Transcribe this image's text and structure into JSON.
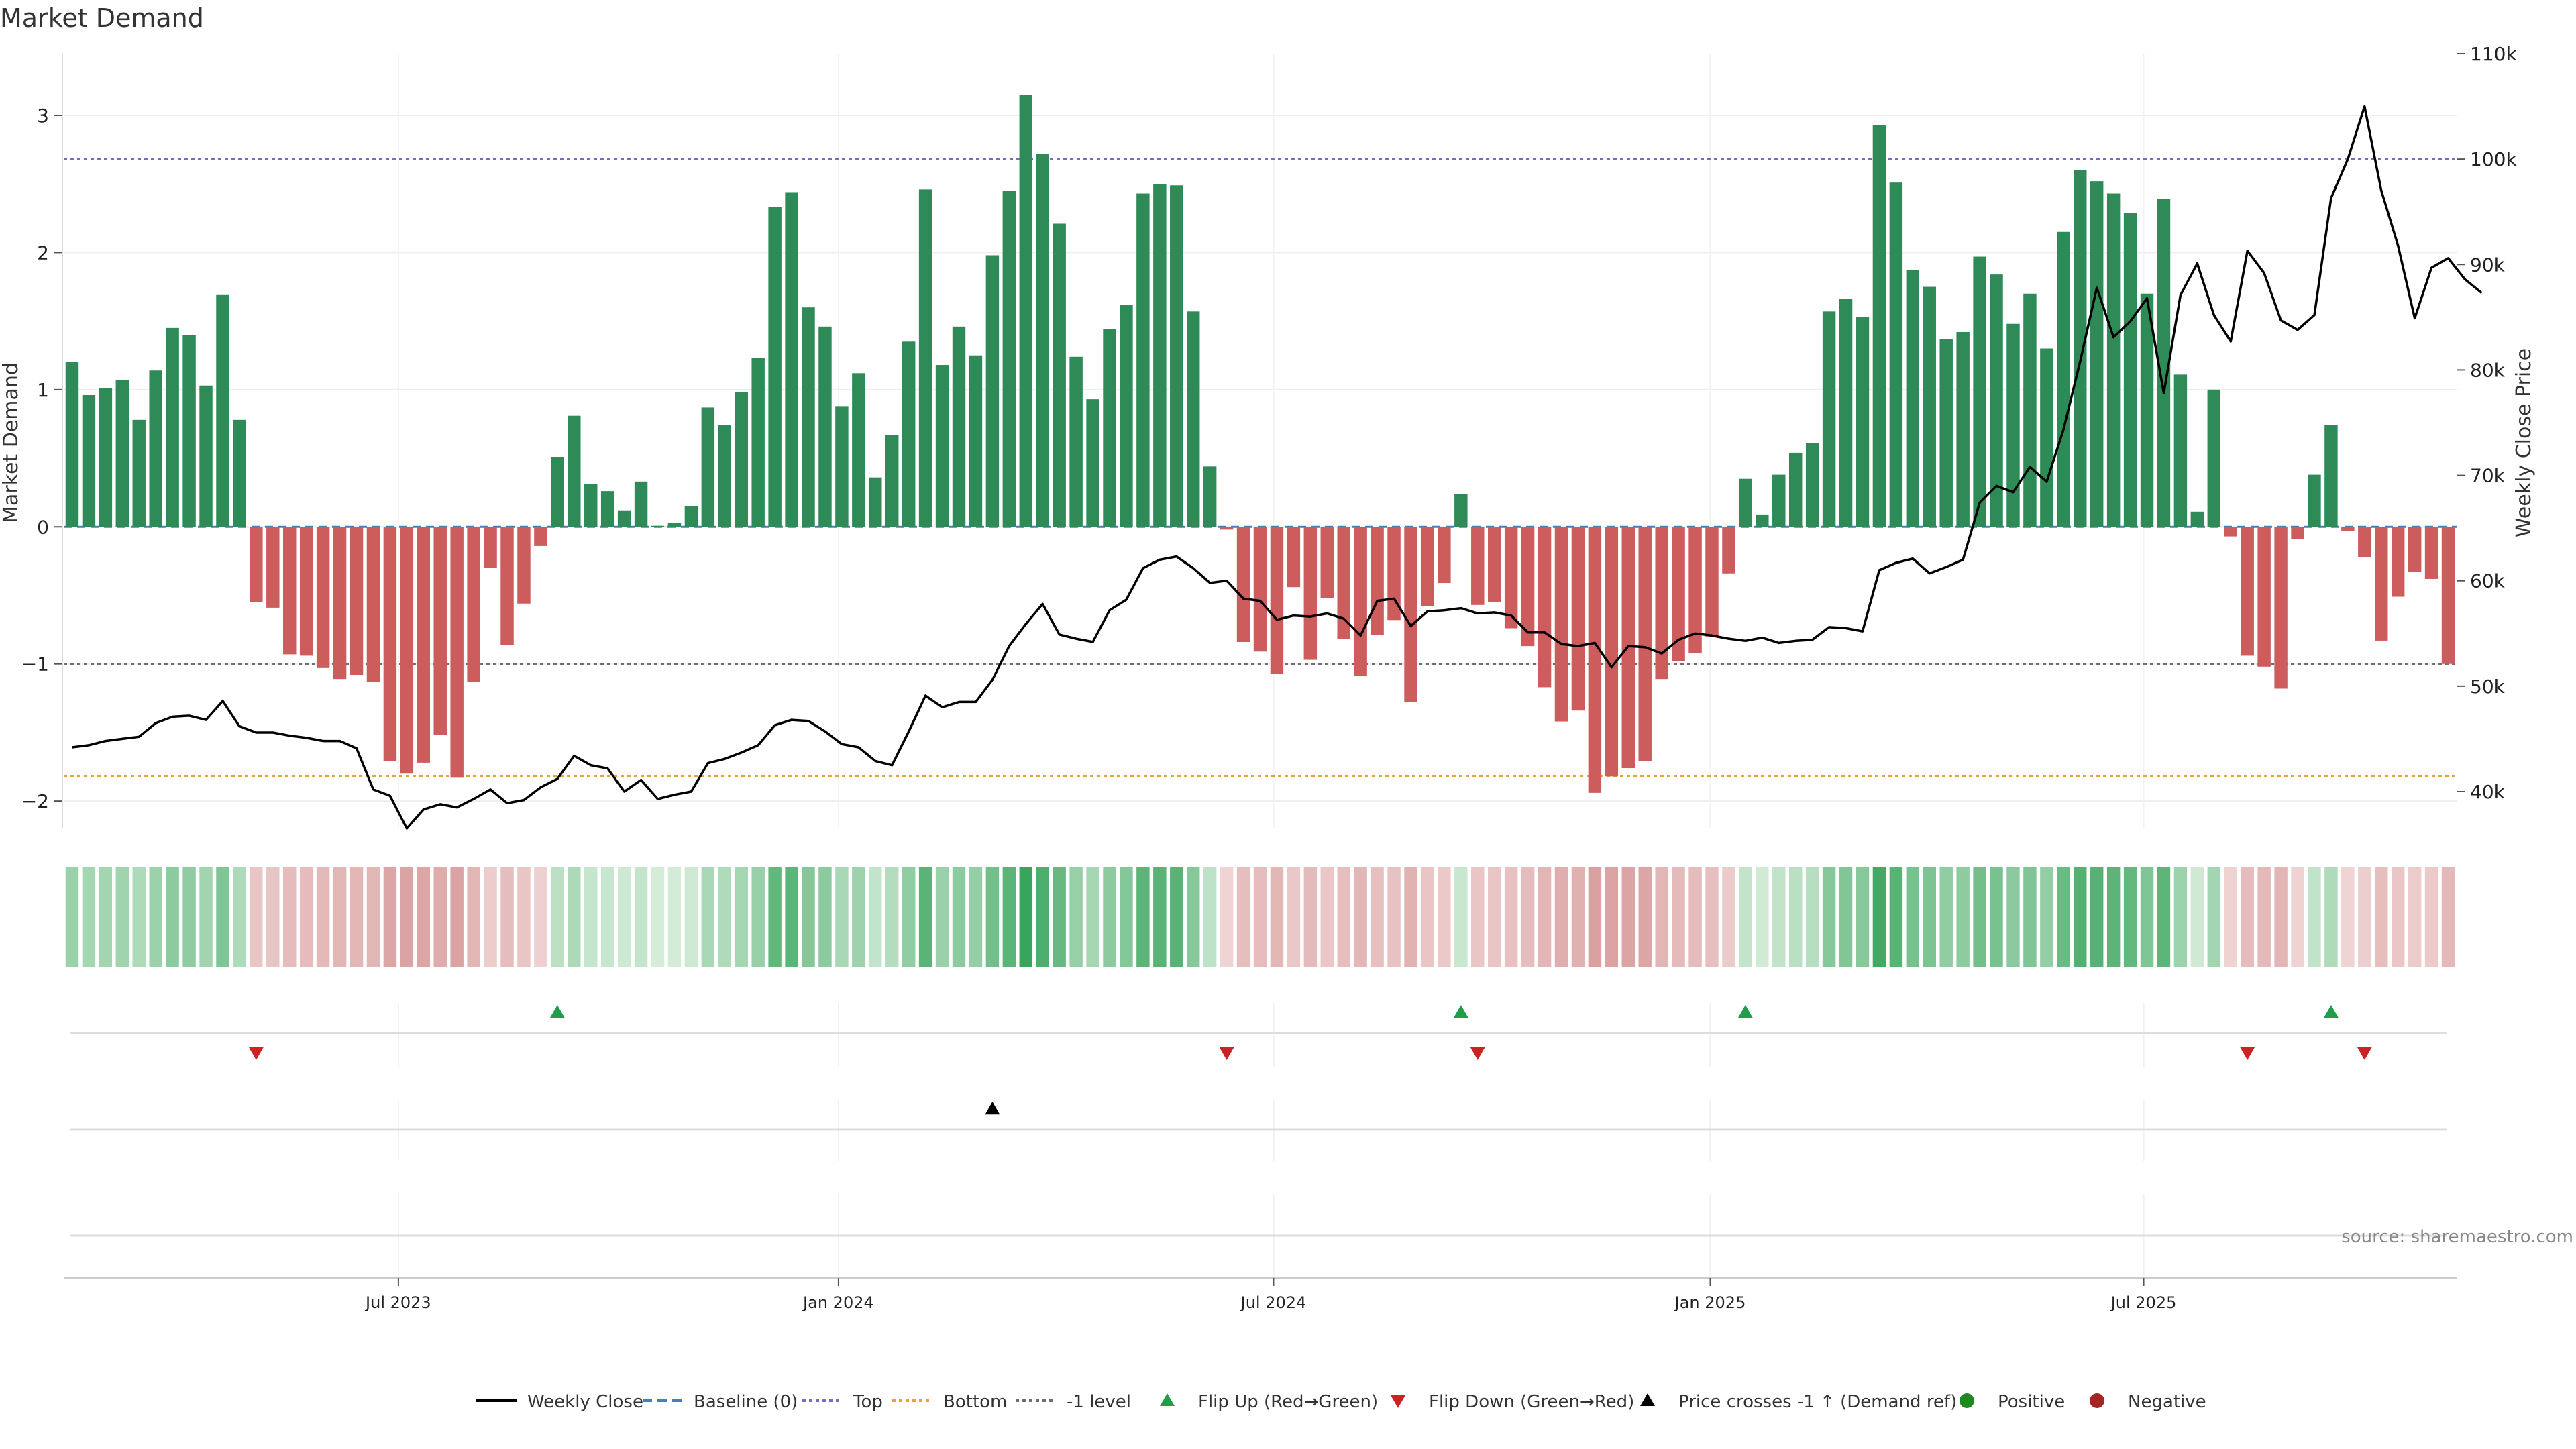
{
  "chart_data": {
    "type": "bar",
    "title": "Market Demand",
    "ylabel": "Market Demand",
    "y2label": "Weekly Close Price",
    "ylim": [
      -2.2,
      3.45
    ],
    "y2lim": [
      36500,
      110000
    ],
    "yticks": [
      3,
      2,
      1,
      0,
      -1,
      -2
    ],
    "ytick_labels": [
      "3",
      "2",
      "1",
      "0",
      "−1",
      "−2"
    ],
    "y2ticks": [
      110000,
      100000,
      90000,
      80000,
      70000,
      60000,
      50000,
      40000
    ],
    "y2tick_labels": [
      "110k",
      "100k",
      "90k",
      "80k",
      "70k",
      "60k",
      "50k",
      "40k"
    ],
    "x_ticks": [
      {
        "week": 20,
        "label": "Jul 2023"
      },
      {
        "week": 46.3,
        "label": "Jan 2024"
      },
      {
        "week": 72.3,
        "label": "Jul 2024"
      },
      {
        "week": 98.4,
        "label": "Jan 2025"
      },
      {
        "week": 124.3,
        "label": "Jul 2025"
      }
    ],
    "reference_lines": {
      "top": 2.68,
      "bottom": -1.82,
      "minus_one": -1.0,
      "baseline": 0
    },
    "demand_values": [
      1.2,
      0.96,
      1.01,
      1.07,
      0.78,
      1.14,
      1.45,
      1.4,
      1.03,
      1.69,
      0.78,
      -0.55,
      -0.59,
      -0.93,
      -0.94,
      -1.03,
      -1.11,
      -1.08,
      -1.13,
      -1.71,
      -1.8,
      -1.72,
      -1.52,
      -1.83,
      -1.13,
      -0.3,
      -0.86,
      -0.56,
      -0.14,
      0.51,
      0.81,
      0.31,
      0.26,
      0.12,
      0.33,
      0.0,
      0.03,
      0.15,
      0.87,
      0.74,
      0.98,
      1.23,
      2.33,
      2.44,
      1.6,
      1.46,
      0.88,
      1.12,
      0.36,
      0.67,
      1.35,
      2.46,
      1.18,
      1.46,
      1.25,
      1.98,
      2.45,
      3.15,
      2.72,
      2.21,
      1.24,
      0.93,
      1.44,
      1.62,
      2.43,
      2.5,
      2.49,
      1.57,
      0.44,
      -0.02,
      -0.84,
      -0.91,
      -1.07,
      -0.44,
      -0.97,
      -0.52,
      -0.82,
      -1.09,
      -0.79,
      -0.68,
      -1.28,
      -0.58,
      -0.41,
      0.24,
      -0.57,
      -0.55,
      -0.74,
      -0.87,
      -1.17,
      -1.42,
      -1.34,
      -1.94,
      -1.82,
      -1.76,
      -1.71,
      -1.11,
      -0.98,
      -0.92,
      -0.8,
      -0.34,
      0.35,
      0.09,
      0.38,
      0.54,
      0.61,
      1.57,
      1.66,
      1.53,
      2.93,
      2.51,
      1.87,
      1.75,
      1.37,
      1.42,
      1.97,
      1.84,
      1.48,
      1.7,
      1.3,
      2.15,
      2.6,
      2.52,
      2.43,
      2.29,
      1.7,
      2.39,
      1.11,
      0.11,
      1.0,
      -0.07,
      -0.94,
      -1.02,
      -1.18,
      -0.09,
      0.38,
      0.74,
      -0.03,
      -0.22,
      -0.83,
      -0.51,
      -0.33,
      -0.38,
      -1.0
    ],
    "weekly_close": [
      44200,
      44400,
      44800,
      45000,
      45200,
      46500,
      47100,
      47200,
      46800,
      48600,
      46200,
      45600,
      45600,
      45300,
      45100,
      44800,
      44800,
      44100,
      40200,
      39600,
      36500,
      38300,
      38800,
      38500,
      39300,
      40200,
      38900,
      39200,
      40400,
      41200,
      43400,
      42500,
      42200,
      40000,
      41100,
      39300,
      39700,
      40000,
      42700,
      43100,
      43700,
      44400,
      46300,
      46800,
      46700,
      45700,
      44500,
      44200,
      42900,
      42500,
      45700,
      49100,
      48000,
      48500,
      48500,
      50600,
      53800,
      55900,
      57800,
      54900,
      54500,
      54200,
      57200,
      58200,
      61200,
      62000,
      62300,
      61200,
      59800,
      60000,
      58300,
      58100,
      56300,
      56700,
      56600,
      56900,
      56400,
      54800,
      58100,
      58300,
      55700,
      57100,
      57200,
      57400,
      56900,
      57000,
      56700,
      55100,
      55100,
      54000,
      53800,
      54100,
      51800,
      53800,
      53700,
      53100,
      54400,
      55000,
      54800,
      54500,
      54300,
      54600,
      54100,
      54300,
      54400,
      55600,
      55500,
      55200,
      61000,
      61700,
      62100,
      60700,
      61300,
      62000,
      67400,
      69000,
      68400,
      70800,
      69400,
      74300,
      80800,
      87800,
      83100,
      84600,
      86800,
      77800,
      87100,
      90100,
      85200,
      82700,
      91300,
      89200,
      84700,
      83800,
      85200,
      96300,
      100000,
      105000,
      97000,
      91800,
      84900,
      89700,
      90600,
      88600,
      87300
    ],
    "heatmap_note": "one strip cell per week, colour intensity follows demand value",
    "events": {
      "flip_up": [
        29,
        83,
        100,
        135
      ],
      "flip_down": [
        11,
        69,
        84,
        130,
        137
      ],
      "price_cross_up": [
        55
      ]
    },
    "legend": [
      {
        "key": "weekly_close",
        "label": "Weekly Close"
      },
      {
        "key": "baseline",
        "label": "Baseline (0)"
      },
      {
        "key": "top",
        "label": "Top"
      },
      {
        "key": "bottom",
        "label": "Bottom"
      },
      {
        "key": "minus_one",
        "label": "-1 level"
      },
      {
        "key": "flip_up",
        "label": "Flip Up (Red→Green)"
      },
      {
        "key": "flip_down",
        "label": "Flip Down (Green→Red)"
      },
      {
        "key": "price_cross",
        "label": "Price crosses -1 ↑ (Demand ref)"
      },
      {
        "key": "positive",
        "label": "Positive"
      },
      {
        "key": "negative",
        "label": "Negative"
      }
    ],
    "source_note": "source: sharemaestro.com",
    "colors": {
      "positive": "#2e8b57",
      "negative": "#cd5c5c",
      "line": "#000000",
      "top": "#7b68c8",
      "bottom": "#e8a23a",
      "minus_one": "#6f6f6f",
      "baseline": "#4a7fb5",
      "flip_up": "#1f9d4a",
      "flip_down": "#cc2222",
      "price_cross": "#000000",
      "positive_dot": "#1e8a1e",
      "negative_dot": "#a52525"
    }
  }
}
